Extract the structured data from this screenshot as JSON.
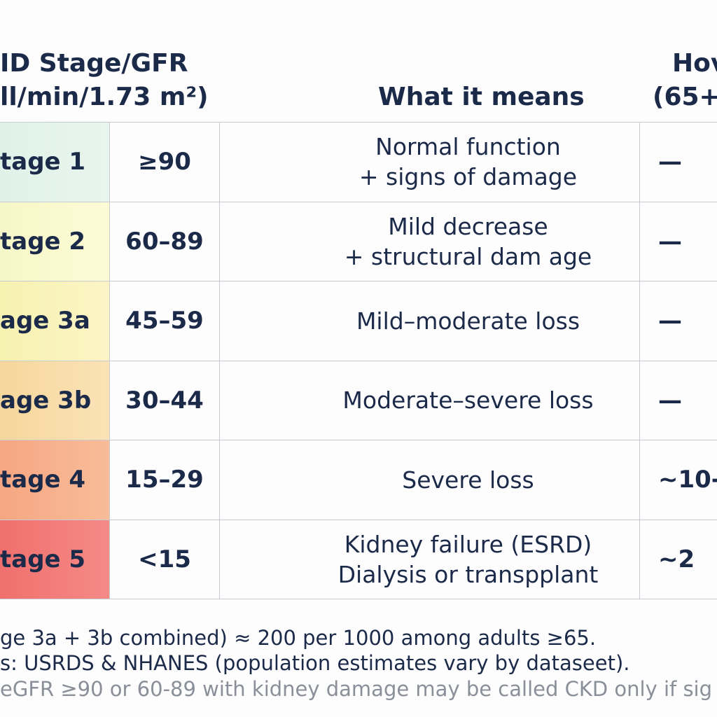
{
  "header": {
    "stage": [
      "ID Stage/GFR",
      "ll/min/1.73 m²)"
    ],
    "meaning": "What it means",
    "risk": [
      "Hov",
      "(65+"
    ]
  },
  "table": {
    "rows": [
      {
        "stage": "tage 1",
        "gfr": "≥90",
        "meaning": [
          "Normal function",
          "+ signs of damage"
        ],
        "risk": "—"
      },
      {
        "stage": "tage 2",
        "gfr": "60–89",
        "meaning": [
          "Mild decrease",
          "+ structural dam age"
        ],
        "risk": "—"
      },
      {
        "stage": "age 3a",
        "gfr": "45–59",
        "meaning": [
          "Mild–moderate loss"
        ],
        "risk": "—"
      },
      {
        "stage": "age 3b",
        "gfr": "30–44",
        "meaning": [
          "Moderate–severe loss"
        ],
        "risk": "—"
      },
      {
        "stage": "tage 4",
        "gfr": "15–29",
        "meaning": [
          "Severe loss"
        ],
        "risk": "~10-"
      },
      {
        "stage": "tage 5",
        "gfr": "<15",
        "meaning": [
          "Kidney failure (ESRD)",
          "Dialysis or transpplant"
        ],
        "risk": "~2"
      }
    ]
  },
  "footer": [
    "ge 3a + 3b combined) ≈ 200 per 1000 among adults ≥65.",
    "s: USRDS & NHANES (population estimates vary by dataseet).",
    "eGFR ≥90 or 60-89 with kidney damage may be called CKD only if sig"
  ]
}
